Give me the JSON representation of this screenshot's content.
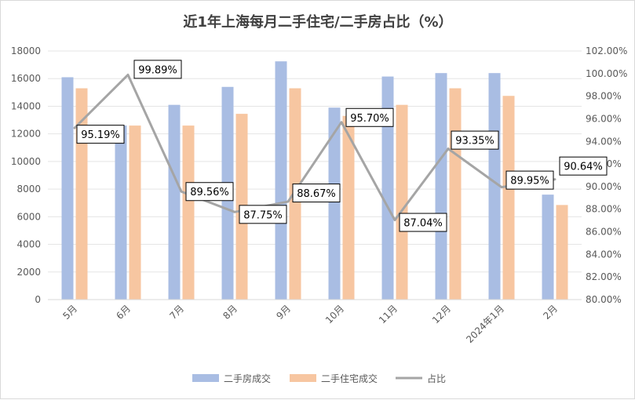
{
  "colors": {
    "series_a": "#a9bde3",
    "series_b": "#f7c6a1",
    "ratio_line": "#a5a5a5",
    "grid": "#e5e5e5"
  },
  "chart_data": {
    "type": "bar",
    "title": "近1年上海每月二手住宅/二手房占比（%）",
    "categories": [
      "5月",
      "6月",
      "7月",
      "8月",
      "9月",
      "10月",
      "11月",
      "12月",
      "2024年1月",
      "2月"
    ],
    "series": [
      {
        "name": "二手房成交",
        "type": "bar",
        "axis": "left",
        "values": [
          16100,
          12600,
          14100,
          15400,
          17250,
          13900,
          16150,
          16400,
          16400,
          7600
        ]
      },
      {
        "name": "二手住宅成交",
        "type": "bar",
        "axis": "left",
        "values": [
          15300,
          12600,
          12600,
          13450,
          15300,
          13300,
          14100,
          15300,
          14750,
          6850
        ]
      },
      {
        "name": "占比",
        "type": "line",
        "axis": "right",
        "values": [
          95.19,
          99.89,
          89.56,
          87.75,
          88.67,
          95.7,
          87.04,
          93.35,
          89.95,
          90.64
        ],
        "labels": [
          "95.19%",
          "99.89%",
          "89.56%",
          "87.75%",
          "88.67%",
          "95.70%",
          "87.04%",
          "93.35%",
          "89.95%",
          "90.64%"
        ]
      }
    ],
    "y_left": {
      "min": 0,
      "max": 18000,
      "step": 2000,
      "ticks": [
        "0",
        "2000",
        "4000",
        "6000",
        "8000",
        "10000",
        "12000",
        "14000",
        "16000",
        "18000"
      ]
    },
    "y_right": {
      "min": 80,
      "max": 102,
      "step": 2,
      "ticks": [
        "80.00%",
        "82.00%",
        "84.00%",
        "86.00%",
        "88.00%",
        "90.00%",
        "92.00%",
        "94.00%",
        "96.00%",
        "98.00%",
        "100.00%",
        "102.00%"
      ]
    },
    "grid": true,
    "legend_position": "bottom",
    "legend": [
      "二手房成交",
      "二手住宅成交",
      "占比"
    ]
  }
}
